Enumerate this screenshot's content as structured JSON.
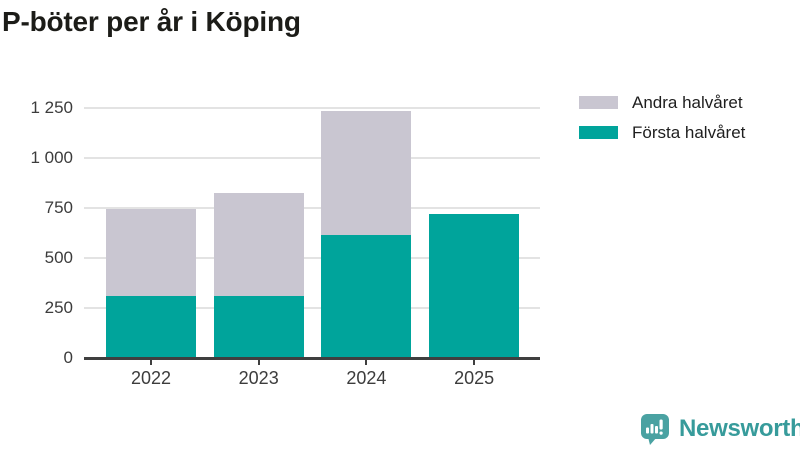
{
  "header": {
    "title": "P-böter per år i Köping"
  },
  "chart_data": {
    "type": "bar",
    "stacked": true,
    "title": "P-böter per år i Köping",
    "categories": [
      "2022",
      "2023",
      "2024",
      "2025"
    ],
    "series": [
      {
        "name": "Första halvåret",
        "color": "#00a49b",
        "values": [
          310,
          310,
          615,
          720
        ]
      },
      {
        "name": "Andra halvåret",
        "color": "#c9c6d1",
        "values": [
          435,
          515,
          620,
          0
        ]
      }
    ],
    "totals": [
      745,
      825,
      1235,
      720
    ],
    "xlabel": "",
    "ylabel": "",
    "ylim": [
      0,
      1250
    ],
    "yticks": [
      0,
      250,
      500,
      750,
      1000,
      1250
    ],
    "ytick_labels": [
      "0",
      "250",
      "500",
      "750",
      "1 000",
      "1 250"
    ],
    "grid": true,
    "legend_position": "top-right",
    "legend_order_top_to_bottom": [
      "Andra halvåret",
      "Första halvåret"
    ]
  },
  "colors": {
    "first_half": "#00a49b",
    "second_half": "#c9c6d1",
    "gridline": "#e3e3e3",
    "axis": "#3f3f3f",
    "tick_text": "#3c3c3c",
    "title_text": "#1c1c18",
    "brand_teal": "#379b9b"
  },
  "branding": {
    "logo_text": "Newsworthy",
    "logo_icon": "speech-bubble-bar-chart-exclamation"
  }
}
